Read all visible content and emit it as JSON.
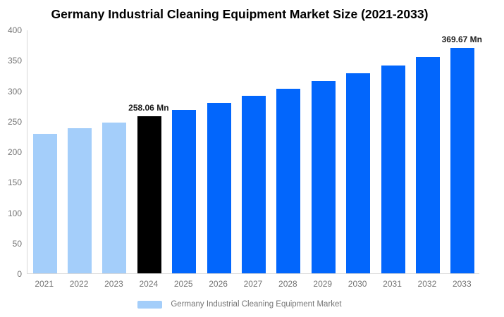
{
  "chart_data": {
    "type": "bar",
    "title": "Germany Industrial Cleaning Equipment Market Size (2021-2033)",
    "unit": "Mn",
    "categories": [
      "2021",
      "2022",
      "2023",
      "2024",
      "2025",
      "2026",
      "2027",
      "2028",
      "2029",
      "2030",
      "2031",
      "2032",
      "2033"
    ],
    "series": [
      {
        "name": "Germany Industrial Cleaning Equipment Market",
        "values": [
          228.92,
          238.25,
          247.96,
          258.06,
          268.57,
          279.51,
          290.9,
          302.75,
          315.08,
          327.92,
          341.28,
          355.18,
          369.67
        ]
      }
    ],
    "bar_colors": [
      "#A4CEFA",
      "#A4CEFA",
      "#A4CEFA",
      "#000000",
      "#0266FC",
      "#0266FC",
      "#0266FC",
      "#0266FC",
      "#0266FC",
      "#0266FC",
      "#0266FC",
      "#0266FC",
      "#0266FC"
    ],
    "value_labels": [
      {
        "category": "2024",
        "text": "258.06 Mn"
      },
      {
        "category": "2033",
        "text": "369.67 Mn"
      }
    ],
    "ylim": [
      0,
      400
    ],
    "yticks": [
      0,
      50,
      100,
      150,
      200,
      250,
      300,
      350,
      400
    ],
    "grid": false,
    "legend_position": "bottom",
    "legend_label": "Germany Industrial Cleaning Equipment Market",
    "legend_swatch_color": "#A4CEFA",
    "colors": {
      "historical_bar": "#A4CEFA",
      "base_year_bar": "#000000",
      "forecast_bar": "#0266FC",
      "axis_line": "#d9d9d9",
      "axis_text": "#757575",
      "title_text": "#000000",
      "value_label_text": "#1a1a1a",
      "background": "#ffffff"
    }
  }
}
